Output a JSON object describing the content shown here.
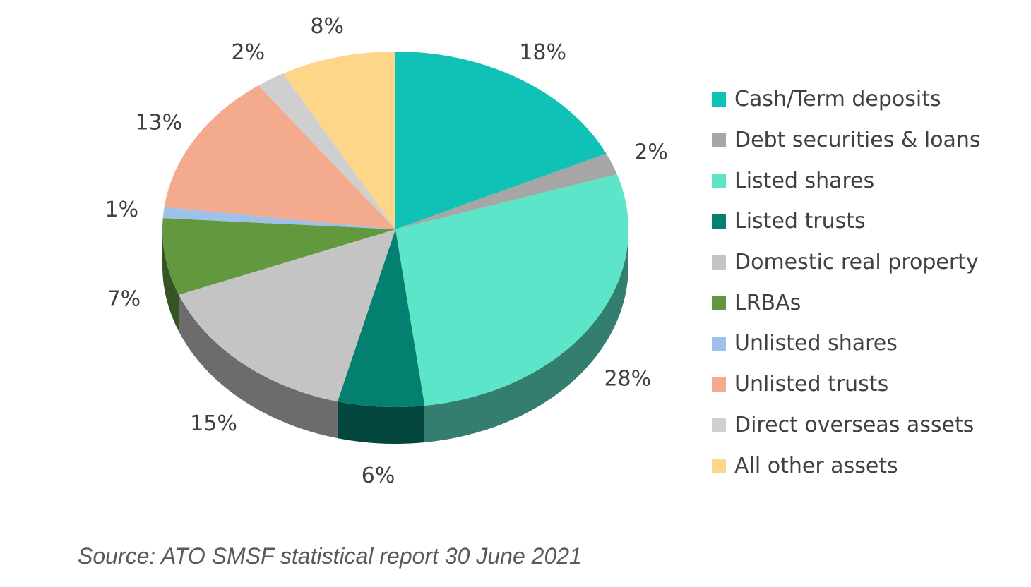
{
  "chart_data": {
    "type": "pie",
    "title": "",
    "slices": [
      {
        "label": "Cash/Term deposits",
        "value": 18,
        "data_label": "18%",
        "color": "#0FC2B5"
      },
      {
        "label": "Debt securities & loans",
        "value": 2,
        "data_label": "2%",
        "color": "#A6A6A6"
      },
      {
        "label": "Listed shares",
        "value": 28,
        "data_label": "28%",
        "color": "#5CE5C9"
      },
      {
        "label": "Listed trusts",
        "value": 6,
        "data_label": "6%",
        "color": "#03806F"
      },
      {
        "label": "Domestic real property",
        "value": 15,
        "data_label": "15%",
        "color": "#C4C4C4"
      },
      {
        "label": "LRBAs",
        "value": 7,
        "data_label": "7%",
        "color": "#62993F"
      },
      {
        "label": "Unlisted shares",
        "value": 1,
        "data_label": "1%",
        "color": "#9EC0E9"
      },
      {
        "label": "Unlisted trusts",
        "value": 13,
        "data_label": "13%",
        "color": "#F4AA8C"
      },
      {
        "label": "Direct overseas assets",
        "value": 2,
        "data_label": "2%",
        "color": "#CFCFCF"
      },
      {
        "label": "All other assets",
        "value": 8,
        "data_label": "8%",
        "color": "#FDD689"
      }
    ],
    "legend_position": "right",
    "style": "3d"
  },
  "source": "Source: ATO SMSF statistical report 30 June 2021"
}
